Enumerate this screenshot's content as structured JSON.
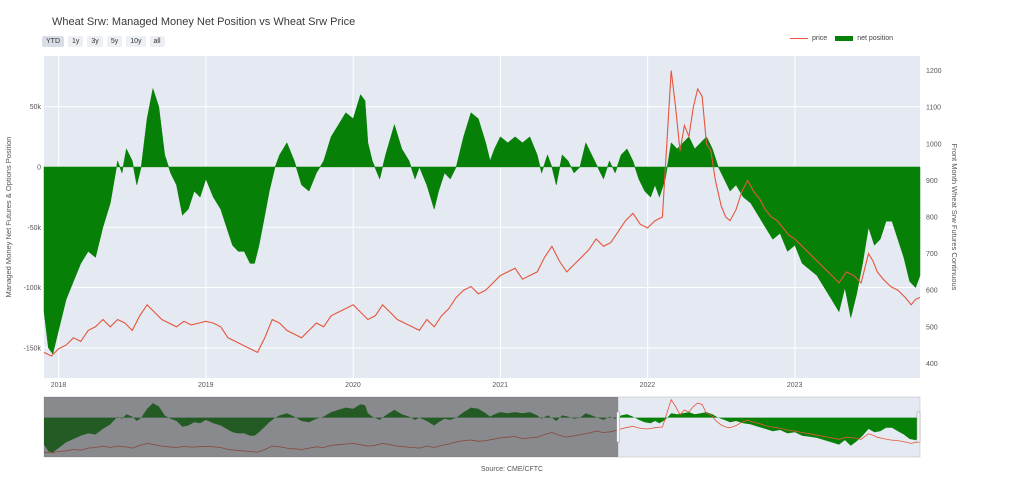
{
  "title": "Wheat Srw: Managed Money Net Position vs Wheat Srw Price",
  "range_buttons": [
    "YTD",
    "1y",
    "3y",
    "5y",
    "10y",
    "all"
  ],
  "legend": {
    "price_label": "price",
    "position_label": "net position"
  },
  "colors": {
    "price": "#e5563b",
    "position": "#078007",
    "plot_bg": "#e5e9f2",
    "grid": "#ffffff"
  },
  "source": "Source: CME/CFTC",
  "chart_data": {
    "type": "area",
    "y_left_label": "Managed Money Net Futures & Options Position",
    "y_right_label": "Front Month Wheat Srw Futures Continuous",
    "x_tick_labels": [
      "2018",
      "2019",
      "2020",
      "2021",
      "2022",
      "2023"
    ],
    "x_range": [
      2017.9,
      2023.85
    ],
    "y_left_range": [
      -175000,
      92000
    ],
    "y_left_ticks": [
      50000,
      0,
      -50000,
      -100000,
      -150000
    ],
    "y_left_tick_labels": [
      "50k",
      "0",
      "-50k",
      "-100k",
      "-150k"
    ],
    "y_right_range": [
      360,
      1240
    ],
    "y_right_ticks": [
      400,
      500,
      600,
      700,
      800,
      900,
      1000,
      1100,
      1200
    ],
    "grid": true,
    "legend_position": "top-right",
    "series": [
      {
        "name": "net position",
        "axis": "left",
        "points": [
          [
            2017.9,
            -120000
          ],
          [
            2017.93,
            -150000
          ],
          [
            2017.96,
            -155000
          ],
          [
            2018.0,
            -135000
          ],
          [
            2018.05,
            -110000
          ],
          [
            2018.1,
            -95000
          ],
          [
            2018.15,
            -80000
          ],
          [
            2018.2,
            -70000
          ],
          [
            2018.25,
            -75000
          ],
          [
            2018.3,
            -50000
          ],
          [
            2018.35,
            -30000
          ],
          [
            2018.4,
            5000
          ],
          [
            2018.43,
            -5000
          ],
          [
            2018.46,
            15000
          ],
          [
            2018.5,
            5000
          ],
          [
            2018.53,
            -15000
          ],
          [
            2018.56,
            0
          ],
          [
            2018.6,
            40000
          ],
          [
            2018.64,
            65000
          ],
          [
            2018.68,
            50000
          ],
          [
            2018.72,
            10000
          ],
          [
            2018.76,
            -5000
          ],
          [
            2018.8,
            -15000
          ],
          [
            2018.84,
            -40000
          ],
          [
            2018.88,
            -35000
          ],
          [
            2018.92,
            -20000
          ],
          [
            2018.96,
            -25000
          ],
          [
            2019.0,
            -10000
          ],
          [
            2019.05,
            -25000
          ],
          [
            2019.1,
            -35000
          ],
          [
            2019.14,
            -50000
          ],
          [
            2019.18,
            -65000
          ],
          [
            2019.22,
            -70000
          ],
          [
            2019.26,
            -70000
          ],
          [
            2019.3,
            -80000
          ],
          [
            2019.33,
            -80000
          ],
          [
            2019.36,
            -65000
          ],
          [
            2019.4,
            -40000
          ],
          [
            2019.43,
            -20000
          ],
          [
            2019.47,
            0
          ],
          [
            2019.5,
            10000
          ],
          [
            2019.55,
            20000
          ],
          [
            2019.6,
            5000
          ],
          [
            2019.65,
            -15000
          ],
          [
            2019.7,
            -20000
          ],
          [
            2019.75,
            -5000
          ],
          [
            2019.8,
            5000
          ],
          [
            2019.85,
            25000
          ],
          [
            2019.9,
            35000
          ],
          [
            2019.95,
            45000
          ],
          [
            2020.0,
            40000
          ],
          [
            2020.05,
            60000
          ],
          [
            2020.08,
            55000
          ],
          [
            2020.1,
            20000
          ],
          [
            2020.13,
            5000
          ],
          [
            2020.18,
            -10000
          ],
          [
            2020.22,
            10000
          ],
          [
            2020.28,
            35000
          ],
          [
            2020.33,
            15000
          ],
          [
            2020.38,
            5000
          ],
          [
            2020.42,
            -10000
          ],
          [
            2020.45,
            0
          ],
          [
            2020.5,
            -15000
          ],
          [
            2020.55,
            -35000
          ],
          [
            2020.58,
            -20000
          ],
          [
            2020.62,
            -5000
          ],
          [
            2020.66,
            -10000
          ],
          [
            2020.7,
            0
          ],
          [
            2020.75,
            25000
          ],
          [
            2020.8,
            45000
          ],
          [
            2020.85,
            40000
          ],
          [
            2020.9,
            20000
          ],
          [
            2020.93,
            5000
          ],
          [
            2020.96,
            15000
          ],
          [
            2021.0,
            25000
          ],
          [
            2021.05,
            20000
          ],
          [
            2021.1,
            25000
          ],
          [
            2021.15,
            20000
          ],
          [
            2021.2,
            25000
          ],
          [
            2021.25,
            10000
          ],
          [
            2021.28,
            -5000
          ],
          [
            2021.32,
            10000
          ],
          [
            2021.35,
            0
          ],
          [
            2021.38,
            -15000
          ],
          [
            2021.42,
            10000
          ],
          [
            2021.46,
            5000
          ],
          [
            2021.5,
            -5000
          ],
          [
            2021.54,
            0
          ],
          [
            2021.58,
            20000
          ],
          [
            2021.62,
            10000
          ],
          [
            2021.66,
            0
          ],
          [
            2021.7,
            -10000
          ],
          [
            2021.74,
            5000
          ],
          [
            2021.78,
            -5000
          ],
          [
            2021.82,
            10000
          ],
          [
            2021.86,
            15000
          ],
          [
            2021.9,
            5000
          ],
          [
            2021.94,
            -10000
          ],
          [
            2021.98,
            -20000
          ],
          [
            2022.02,
            -25000
          ],
          [
            2022.05,
            -15000
          ],
          [
            2022.08,
            -25000
          ],
          [
            2022.12,
            -10000
          ],
          [
            2022.16,
            20000
          ],
          [
            2022.2,
            15000
          ],
          [
            2022.24,
            20000
          ],
          [
            2022.28,
            25000
          ],
          [
            2022.32,
            15000
          ],
          [
            2022.36,
            20000
          ],
          [
            2022.4,
            25000
          ],
          [
            2022.44,
            15000
          ],
          [
            2022.48,
            0
          ],
          [
            2022.52,
            -10000
          ],
          [
            2022.56,
            -20000
          ],
          [
            2022.6,
            -15000
          ],
          [
            2022.65,
            -25000
          ],
          [
            2022.7,
            -30000
          ],
          [
            2022.75,
            -40000
          ],
          [
            2022.8,
            -50000
          ],
          [
            2022.85,
            -60000
          ],
          [
            2022.9,
            -55000
          ],
          [
            2022.95,
            -70000
          ],
          [
            2023.0,
            -65000
          ],
          [
            2023.05,
            -80000
          ],
          [
            2023.1,
            -85000
          ],
          [
            2023.15,
            -90000
          ],
          [
            2023.2,
            -100000
          ],
          [
            2023.25,
            -110000
          ],
          [
            2023.3,
            -120000
          ],
          [
            2023.34,
            -100000
          ],
          [
            2023.38,
            -125000
          ],
          [
            2023.42,
            -105000
          ],
          [
            2023.46,
            -80000
          ],
          [
            2023.5,
            -50000
          ],
          [
            2023.54,
            -65000
          ],
          [
            2023.58,
            -60000
          ],
          [
            2023.62,
            -45000
          ],
          [
            2023.66,
            -45000
          ],
          [
            2023.7,
            -60000
          ],
          [
            2023.74,
            -75000
          ],
          [
            2023.78,
            -95000
          ],
          [
            2023.82,
            -100000
          ],
          [
            2023.85,
            -90000
          ]
        ]
      },
      {
        "name": "price",
        "axis": "right",
        "points": [
          [
            2017.9,
            430
          ],
          [
            2017.95,
            420
          ],
          [
            2018.0,
            440
          ],
          [
            2018.05,
            450
          ],
          [
            2018.1,
            470
          ],
          [
            2018.15,
            460
          ],
          [
            2018.2,
            490
          ],
          [
            2018.25,
            500
          ],
          [
            2018.3,
            520
          ],
          [
            2018.35,
            500
          ],
          [
            2018.4,
            520
          ],
          [
            2018.45,
            510
          ],
          [
            2018.5,
            490
          ],
          [
            2018.55,
            530
          ],
          [
            2018.6,
            560
          ],
          [
            2018.65,
            540
          ],
          [
            2018.7,
            520
          ],
          [
            2018.75,
            510
          ],
          [
            2018.8,
            500
          ],
          [
            2018.85,
            515
          ],
          [
            2018.9,
            505
          ],
          [
            2018.95,
            510
          ],
          [
            2019.0,
            515
          ],
          [
            2019.05,
            510
          ],
          [
            2019.1,
            500
          ],
          [
            2019.15,
            470
          ],
          [
            2019.2,
            460
          ],
          [
            2019.25,
            450
          ],
          [
            2019.3,
            440
          ],
          [
            2019.35,
            430
          ],
          [
            2019.4,
            470
          ],
          [
            2019.45,
            520
          ],
          [
            2019.5,
            510
          ],
          [
            2019.55,
            490
          ],
          [
            2019.6,
            480
          ],
          [
            2019.65,
            470
          ],
          [
            2019.7,
            490
          ],
          [
            2019.75,
            510
          ],
          [
            2019.8,
            500
          ],
          [
            2019.85,
            530
          ],
          [
            2019.9,
            540
          ],
          [
            2019.95,
            550
          ],
          [
            2020.0,
            560
          ],
          [
            2020.05,
            540
          ],
          [
            2020.1,
            520
          ],
          [
            2020.15,
            530
          ],
          [
            2020.2,
            560
          ],
          [
            2020.25,
            540
          ],
          [
            2020.3,
            520
          ],
          [
            2020.35,
            510
          ],
          [
            2020.4,
            500
          ],
          [
            2020.45,
            490
          ],
          [
            2020.5,
            520
          ],
          [
            2020.55,
            500
          ],
          [
            2020.6,
            530
          ],
          [
            2020.65,
            550
          ],
          [
            2020.7,
            580
          ],
          [
            2020.75,
            600
          ],
          [
            2020.8,
            610
          ],
          [
            2020.85,
            590
          ],
          [
            2020.9,
            600
          ],
          [
            2020.95,
            620
          ],
          [
            2021.0,
            640
          ],
          [
            2021.05,
            650
          ],
          [
            2021.1,
            660
          ],
          [
            2021.15,
            630
          ],
          [
            2021.2,
            640
          ],
          [
            2021.25,
            650
          ],
          [
            2021.3,
            690
          ],
          [
            2021.35,
            720
          ],
          [
            2021.4,
            680
          ],
          [
            2021.45,
            650
          ],
          [
            2021.5,
            670
          ],
          [
            2021.55,
            690
          ],
          [
            2021.6,
            710
          ],
          [
            2021.65,
            740
          ],
          [
            2021.7,
            720
          ],
          [
            2021.75,
            730
          ],
          [
            2021.8,
            760
          ],
          [
            2021.85,
            790
          ],
          [
            2021.9,
            810
          ],
          [
            2021.95,
            780
          ],
          [
            2022.0,
            770
          ],
          [
            2022.05,
            790
          ],
          [
            2022.1,
            800
          ],
          [
            2022.13,
            1000
          ],
          [
            2022.16,
            1200
          ],
          [
            2022.19,
            1100
          ],
          [
            2022.22,
            980
          ],
          [
            2022.25,
            1050
          ],
          [
            2022.28,
            1020
          ],
          [
            2022.31,
            1100
          ],
          [
            2022.34,
            1150
          ],
          [
            2022.37,
            1130
          ],
          [
            2022.4,
            1000
          ],
          [
            2022.43,
            980
          ],
          [
            2022.46,
            900
          ],
          [
            2022.5,
            830
          ],
          [
            2022.53,
            800
          ],
          [
            2022.56,
            790
          ],
          [
            2022.6,
            820
          ],
          [
            2022.64,
            870
          ],
          [
            2022.68,
            900
          ],
          [
            2022.72,
            870
          ],
          [
            2022.76,
            850
          ],
          [
            2022.8,
            820
          ],
          [
            2022.84,
            800
          ],
          [
            2022.88,
            790
          ],
          [
            2022.92,
            770
          ],
          [
            2022.96,
            750
          ],
          [
            2023.0,
            740
          ],
          [
            2023.05,
            720
          ],
          [
            2023.1,
            700
          ],
          [
            2023.15,
            680
          ],
          [
            2023.2,
            660
          ],
          [
            2023.25,
            640
          ],
          [
            2023.3,
            620
          ],
          [
            2023.35,
            650
          ],
          [
            2023.4,
            640
          ],
          [
            2023.45,
            620
          ],
          [
            2023.5,
            700
          ],
          [
            2023.53,
            680
          ],
          [
            2023.56,
            650
          ],
          [
            2023.6,
            630
          ],
          [
            2023.65,
            610
          ],
          [
            2023.7,
            600
          ],
          [
            2023.75,
            580
          ],
          [
            2023.79,
            560
          ],
          [
            2023.82,
            575
          ],
          [
            2023.85,
            580
          ]
        ]
      }
    ]
  }
}
